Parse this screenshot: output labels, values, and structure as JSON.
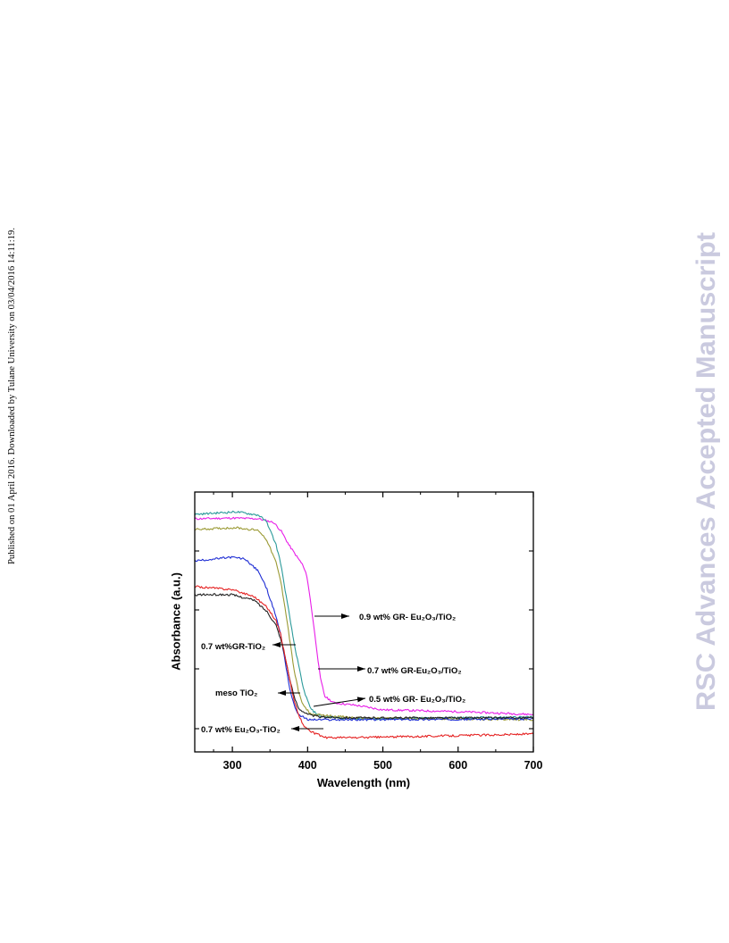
{
  "page": {
    "side_note": "Published on 01 April 2016. Downloaded by Tulane University on 03/04/2016 14:11:19.",
    "watermark": "RSC Advances Accepted Manuscript",
    "watermark_color": "#cacadf"
  },
  "chart_data": {
    "type": "line",
    "xlabel": "Wavelength (nm)",
    "ylabel": "Absorbance (a.u.)",
    "xlim": [
      250,
      700
    ],
    "xticks": [
      300,
      400,
      500,
      600,
      700
    ],
    "ylim": [
      0,
      1
    ],
    "grid": false,
    "series": [
      {
        "name": "0.9 wt% GR- Eu₂O₃/TiO₂",
        "color": "#e81ee8",
        "x": [
          250,
          300,
          335,
          355,
          365,
          375,
          387,
          393,
          399,
          405,
          411,
          417,
          423,
          435,
          465,
          500,
          600,
          700
        ],
        "y": [
          0.897,
          0.9,
          0.897,
          0.883,
          0.849,
          0.797,
          0.746,
          0.722,
          0.677,
          0.557,
          0.419,
          0.282,
          0.213,
          0.189,
          0.179,
          0.162,
          0.155,
          0.144
        ]
      },
      {
        "name": "0.7 wt% GR-Eu₂O₃/TiO₂",
        "color": "#2b9a9a",
        "x": [
          250,
          305,
          335,
          346,
          358,
          364,
          370,
          376,
          382,
          388,
          394,
          400,
          405,
          417,
          465,
          700
        ],
        "y": [
          0.914,
          0.924,
          0.911,
          0.883,
          0.797,
          0.729,
          0.625,
          0.522,
          0.419,
          0.333,
          0.247,
          0.196,
          0.162,
          0.137,
          0.127,
          0.134
        ]
      },
      {
        "name": "0.5 wt% GR- Eu₂O₃/TiO₂",
        "color": "#9b9a35",
        "x": [
          250,
          305,
          335,
          346,
          358,
          364,
          370,
          376,
          382,
          388,
          394,
          405,
          465,
          700
        ],
        "y": [
          0.856,
          0.863,
          0.852,
          0.814,
          0.729,
          0.66,
          0.557,
          0.436,
          0.316,
          0.23,
          0.179,
          0.144,
          0.131,
          0.124
        ]
      },
      {
        "name": "0.7 wt%GR-TiO₂",
        "color": "#1f2ed4",
        "x": [
          250,
          299,
          317,
          335,
          346,
          358,
          364,
          370,
          376,
          382,
          388,
          400,
          465,
          700
        ],
        "y": [
          0.735,
          0.749,
          0.742,
          0.694,
          0.625,
          0.522,
          0.454,
          0.351,
          0.247,
          0.179,
          0.144,
          0.124,
          0.124,
          0.127
        ]
      },
      {
        "name": "meso TiO₂",
        "color": "#222222",
        "x": [
          250,
          299,
          329,
          346,
          358,
          364,
          370,
          376,
          382,
          388,
          400,
          417,
          465,
          700
        ],
        "y": [
          0.605,
          0.605,
          0.584,
          0.54,
          0.488,
          0.436,
          0.368,
          0.282,
          0.213,
          0.168,
          0.144,
          0.134,
          0.131,
          0.131
        ]
      },
      {
        "name": "0.7 wt% Eu₂O₃-TiO₂",
        "color": "#e52222",
        "x": [
          250,
          299,
          329,
          346,
          358,
          364,
          370,
          376,
          382,
          388,
          394,
          405,
          424,
          465,
          584,
          700
        ],
        "y": [
          0.636,
          0.625,
          0.598,
          0.557,
          0.505,
          0.454,
          0.368,
          0.282,
          0.196,
          0.144,
          0.103,
          0.076,
          0.055,
          0.055,
          0.062,
          0.069
        ]
      }
    ]
  }
}
